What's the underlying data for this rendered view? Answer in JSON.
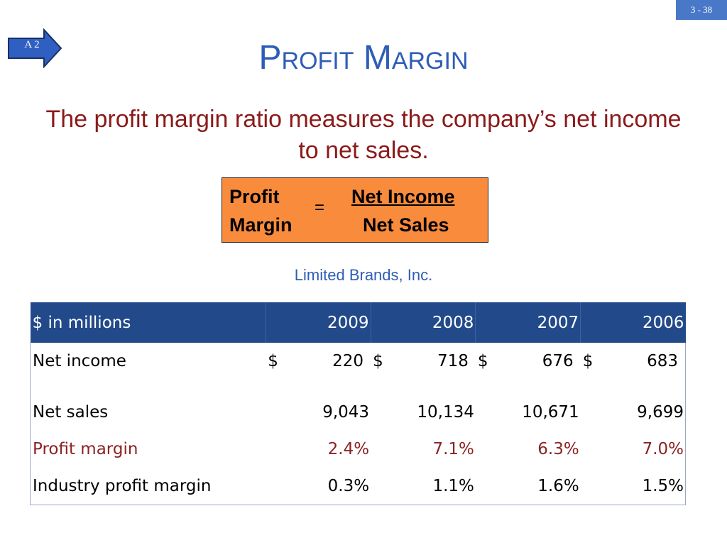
{
  "slide_number": "3 - 38",
  "nav": {
    "label": "A 2"
  },
  "title": "Profit Margin",
  "subtitle": "The profit margin ratio measures the company’s net income to net sales.",
  "formula": {
    "lhs_line1": "Profit",
    "lhs_line2": "Margin",
    "equals": "=",
    "numerator": "Net Income",
    "denominator": "Net Sales"
  },
  "company": "Limited Brands, Inc.",
  "table": {
    "header": [
      "$ in millions",
      "2009",
      "2008",
      "2007",
      "2006"
    ],
    "net_income": {
      "label": "Net income",
      "currency": "$",
      "values": [
        "220",
        "718",
        "676",
        "683"
      ]
    },
    "net_sales": {
      "label": "Net sales",
      "values": [
        "9,043",
        "10,134",
        "10,671",
        "9,699"
      ]
    },
    "profit_margin": {
      "label": "Profit margin",
      "values": [
        "2.4%",
        "7.1%",
        "6.3%",
        "7.0%"
      ]
    },
    "industry_margin": {
      "label": "Industry profit margin",
      "values": [
        "0.3%",
        "1.1%",
        "1.6%",
        "1.5%"
      ]
    }
  },
  "colors": {
    "title": "#2e5db6",
    "subtitle": "#8b1a1a",
    "formula_box": "#f98b3d",
    "table_header": "#224a8a",
    "profit_margin_row": "#8b2323",
    "page_badge": "#4a78c8"
  }
}
